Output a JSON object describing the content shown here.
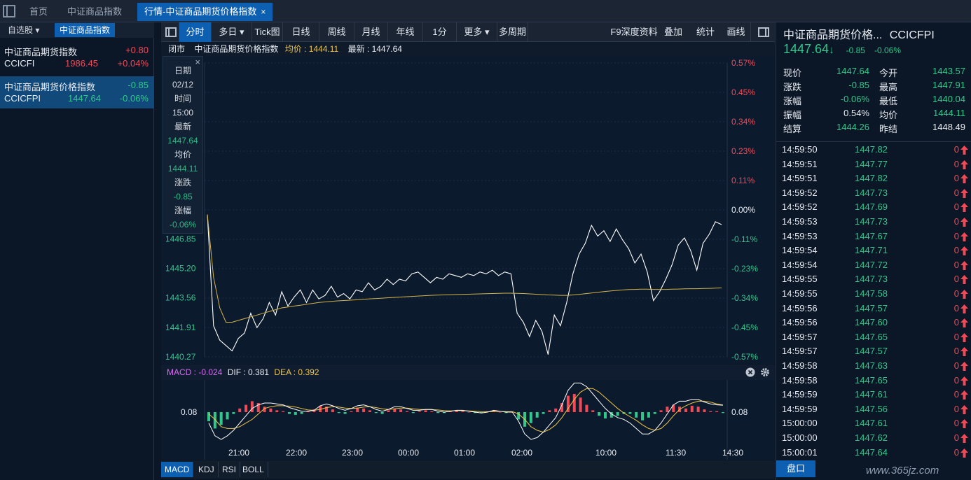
{
  "tabs": [
    {
      "label": "首页",
      "active": false
    },
    {
      "label": "中证商品指数",
      "active": false
    },
    {
      "label": "行情-中证商品期货价格指数",
      "active": true,
      "close": "×"
    }
  ],
  "left": {
    "tabs": [
      {
        "label": "自选股 ▾"
      },
      {
        "label": "中证商品指数"
      }
    ],
    "items": [
      {
        "name": "中证商品期货指数",
        "change": "+0.80",
        "code": "CCICFI",
        "price": "1986.45",
        "pct": "+0.04%"
      },
      {
        "name": "中证商品期货价格指数",
        "change": "-0.85",
        "code": "CCICFPI",
        "price": "1447.64",
        "pct": "-0.06%"
      }
    ]
  },
  "toolbar": {
    "items": [
      "分时",
      "多日 ▾",
      "Tick图",
      "日线",
      "周线",
      "月线",
      "年线",
      "1分",
      "更多 ▾",
      "多周期"
    ],
    "right_items": [
      "F9深度资料",
      "叠加",
      "统计",
      "画线"
    ]
  },
  "infobar": {
    "status": "闭市",
    "name": "中证商品期货价格指数",
    "avg": "均价 : 1444.11",
    "latest": "最新 : 1447.64"
  },
  "popup": {
    "close": "×",
    "rows": [
      {
        "text": "日期",
        "color": "white"
      },
      {
        "text": "02/12",
        "color": "white"
      },
      {
        "text": "时间",
        "color": "white"
      },
      {
        "text": "15:00",
        "color": "white"
      },
      {
        "text": "最新",
        "color": "white"
      },
      {
        "text": "1447.64",
        "color": "green"
      },
      {
        "text": "均价",
        "color": "white"
      },
      {
        "text": "1444.11",
        "color": "green"
      },
      {
        "text": "涨跌",
        "color": "white"
      },
      {
        "text": "-0.85",
        "color": "green"
      },
      {
        "text": "涨幅",
        "color": "white"
      },
      {
        "text": "-0.06%",
        "color": "green"
      }
    ]
  },
  "chart_data": {
    "type": "line",
    "y_left_ticks": [
      "1446.85",
      "1445.20",
      "1443.56",
      "1441.91",
      "1440.27"
    ],
    "y_right_ticks": [
      "0.57%",
      "0.45%",
      "0.34%",
      "0.23%",
      "0.11%",
      "0.00%",
      "-0.11%",
      "-0.23%",
      "-0.34%",
      "-0.45%",
      "-0.57%"
    ],
    "ylim": [
      1440.27,
      1456.65
    ],
    "prev_settle": 1448.49,
    "x_ticks": [
      "21:00",
      "22:00",
      "23:00",
      "00:00",
      "01:00",
      "02:00",
      "10:00",
      "11:30",
      "14:30"
    ],
    "price": [
      1448.2,
      1442.0,
      1441.2,
      1440.9,
      1440.6,
      1441.3,
      1441.6,
      1442.7,
      1441.9,
      1442.4,
      1443.3,
      1442.6,
      1443.9,
      1443.1,
      1443.6,
      1444.0,
      1443.3,
      1444.0,
      1443.5,
      1443.7,
      1444.2,
      1443.6,
      1443.8,
      1443.5,
      1444.0,
      1443.9,
      1444.4,
      1444.0,
      1444.2,
      1444.6,
      1444.3,
      1444.6,
      1444.5,
      1444.9,
      1445.0,
      1444.7,
      1444.4,
      1444.7,
      1444.6,
      1444.9,
      1444.8,
      1444.7,
      1444.9,
      1444.8,
      1445.0,
      1444.9,
      1445.1,
      1444.8,
      1445.0,
      1444.9,
      1442.7,
      1442.2,
      1441.4,
      1442.3,
      1441.7,
      1440.4,
      1442.6,
      1442.0,
      1443.3,
      1444.9,
      1446.0,
      1446.6,
      1447.6,
      1447.0,
      1447.3,
      1446.7,
      1447.4,
      1446.8,
      1446.3,
      1445.5,
      1446.0,
      1445.0,
      1443.4,
      1443.9,
      1444.6,
      1445.4,
      1446.5,
      1446.9,
      1446.2,
      1445.1,
      1446.6,
      1447.1,
      1447.8,
      1447.64
    ],
    "avg": [
      1448.2,
      1444.7,
      1443.0,
      1442.2,
      1442.2,
      1442.3,
      1442.4,
      1442.5,
      1442.6,
      1442.7,
      1442.8,
      1442.9,
      1443.0,
      1443.05,
      1443.1,
      1443.15,
      1443.2,
      1443.25,
      1443.3,
      1443.33,
      1443.36,
      1443.39,
      1443.41,
      1443.43,
      1443.45,
      1443.47,
      1443.5,
      1443.52,
      1443.54,
      1443.56,
      1443.58,
      1443.6,
      1443.62,
      1443.64,
      1443.66,
      1443.68,
      1443.7,
      1443.71,
      1443.72,
      1443.73,
      1443.74,
      1443.75,
      1443.76,
      1443.77,
      1443.78,
      1443.79,
      1443.8,
      1443.81,
      1443.82,
      1443.82,
      1443.81,
      1443.8,
      1443.78,
      1443.76,
      1443.74,
      1443.72,
      1443.71,
      1443.7,
      1443.7,
      1443.72,
      1443.75,
      1443.79,
      1443.83,
      1443.87,
      1443.91,
      1443.94,
      1443.97,
      1444.0,
      1444.02,
      1444.03,
      1444.04,
      1444.04,
      1444.03,
      1444.03,
      1444.03,
      1444.04,
      1444.05,
      1444.06,
      1444.07,
      1444.07,
      1444.08,
      1444.09,
      1444.1,
      1444.11
    ]
  },
  "macd": {
    "label": "MACD : -0.024",
    "dif": "DIF : 0.381",
    "dea": "DEA : 0.392",
    "level": "0.08",
    "hist": [
      -0.5,
      -0.9,
      -0.7,
      -0.4,
      -0.1,
      0.2,
      0.4,
      0.6,
      0.5,
      0.3,
      0.2,
      0.1,
      0.05,
      -0.1,
      -0.15,
      -0.1,
      0.05,
      0.15,
      0.35,
      0.3,
      0.15,
      -0.05,
      -0.1,
      0.05,
      0.25,
      0.2,
      0.1,
      -0.05,
      -0.1,
      0.1,
      0.2,
      0.15,
      0.05,
      -0.05,
      0.05,
      0.1,
      0.05,
      -0.05,
      -0.05,
      0.05,
      0.1,
      0.05,
      0.0,
      -0.05,
      -0.05,
      0.05,
      0.1,
      0.0,
      -0.05,
      0.0,
      -0.4,
      -0.8,
      -0.6,
      -0.3,
      -0.1,
      0.1,
      0.2,
      0.5,
      0.9,
      1.0,
      0.8,
      0.4,
      0.1,
      -0.2,
      -0.35,
      -0.3,
      -0.2,
      -0.1,
      -0.1,
      -0.3,
      -0.45,
      -0.3,
      -0.1,
      0.1,
      0.3,
      0.4,
      0.3,
      0.2,
      0.35,
      0.3,
      0.15,
      0.05,
      0.05,
      -0.05
    ],
    "dif_line": [
      -0.6,
      -1.3,
      -1.5,
      -1.3,
      -1.0,
      -0.6,
      -0.2,
      0.2,
      0.4,
      0.5,
      0.5,
      0.45,
      0.4,
      0.25,
      0.15,
      0.05,
      0.05,
      0.1,
      0.35,
      0.45,
      0.35,
      0.2,
      0.1,
      0.2,
      0.35,
      0.4,
      0.3,
      0.15,
      0.05,
      0.15,
      0.3,
      0.3,
      0.2,
      0.1,
      0.1,
      0.15,
      0.15,
      0.05,
      0.0,
      0.05,
      0.1,
      0.1,
      0.05,
      0.0,
      -0.05,
      0.0,
      0.1,
      0.05,
      0.0,
      0.0,
      -0.5,
      -1.2,
      -1.5,
      -1.4,
      -1.1,
      -0.7,
      -0.3,
      0.4,
      1.2,
      1.6,
      1.6,
      1.4,
      1.0,
      0.6,
      0.2,
      -0.1,
      -0.3,
      -0.4,
      -0.6,
      -0.9,
      -1.2,
      -1.2,
      -1.0,
      -0.6,
      -0.1,
      0.4,
      0.6,
      0.6,
      0.7,
      0.7,
      0.55,
      0.45,
      0.4,
      0.38
    ],
    "dea_line": [
      -0.1,
      -0.4,
      -0.8,
      -0.9,
      -0.9,
      -0.8,
      -0.6,
      -0.4,
      -0.1,
      0.2,
      0.3,
      0.35,
      0.35,
      0.33,
      0.28,
      0.2,
      0.12,
      0.1,
      0.15,
      0.25,
      0.3,
      0.28,
      0.22,
      0.2,
      0.22,
      0.28,
      0.3,
      0.25,
      0.18,
      0.15,
      0.18,
      0.22,
      0.22,
      0.18,
      0.15,
      0.14,
      0.14,
      0.12,
      0.08,
      0.07,
      0.08,
      0.08,
      0.07,
      0.05,
      0.03,
      0.02,
      0.04,
      0.04,
      0.03,
      0.03,
      -0.1,
      -0.4,
      -0.8,
      -1.0,
      -1.1,
      -0.95,
      -0.7,
      -0.3,
      0.2,
      0.7,
      1.1,
      1.3,
      1.3,
      1.1,
      0.8,
      0.5,
      0.2,
      -0.05,
      -0.25,
      -0.45,
      -0.7,
      -0.9,
      -1.0,
      -0.9,
      -0.6,
      -0.2,
      0.15,
      0.35,
      0.5,
      0.6,
      0.6,
      0.55,
      0.45,
      0.39
    ]
  },
  "bottom_tabs": [
    "MACD",
    "KDJ",
    "RSI",
    "BOLL"
  ],
  "right": {
    "title": "中证商品期货价格...",
    "code": "CCICFPI",
    "price": "1447.64",
    "arrow": "↓",
    "change": "-0.85",
    "pct": "-0.06%",
    "stats": [
      {
        "k1": "现价",
        "v1": "1447.64",
        "c1": "green",
        "k2": "今开",
        "v2": "1443.57",
        "c2": "green"
      },
      {
        "k1": "涨跌",
        "v1": "-0.85",
        "c1": "green",
        "k2": "最高",
        "v2": "1447.91",
        "c2": "green"
      },
      {
        "k1": "涨幅",
        "v1": "-0.06%",
        "c1": "green",
        "k2": "最低",
        "v2": "1440.04",
        "c2": "green"
      },
      {
        "k1": "振幅",
        "v1": "0.54%",
        "c1": "white",
        "k2": "均价",
        "v2": "1444.11",
        "c2": "green"
      },
      {
        "k1": "结算",
        "v1": "1444.26",
        "c1": "green",
        "k2": "昨结",
        "v2": "1448.49",
        "c2": "white"
      }
    ],
    "ticks": [
      {
        "t": "14:59:50",
        "p": "1447.82",
        "v": "0"
      },
      {
        "t": "14:59:51",
        "p": "1447.77",
        "v": "0"
      },
      {
        "t": "14:59:51",
        "p": "1447.82",
        "v": "0"
      },
      {
        "t": "14:59:52",
        "p": "1447.73",
        "v": "0"
      },
      {
        "t": "14:59:52",
        "p": "1447.69",
        "v": "0"
      },
      {
        "t": "14:59:53",
        "p": "1447.73",
        "v": "0"
      },
      {
        "t": "14:59:53",
        "p": "1447.67",
        "v": "0"
      },
      {
        "t": "14:59:54",
        "p": "1447.71",
        "v": "0"
      },
      {
        "t": "14:59:54",
        "p": "1447.72",
        "v": "0"
      },
      {
        "t": "14:59:55",
        "p": "1447.73",
        "v": "0"
      },
      {
        "t": "14:59:55",
        "p": "1447.58",
        "v": "0"
      },
      {
        "t": "14:59:56",
        "p": "1447.57",
        "v": "0"
      },
      {
        "t": "14:59:56",
        "p": "1447.60",
        "v": "0"
      },
      {
        "t": "14:59:57",
        "p": "1447.65",
        "v": "0"
      },
      {
        "t": "14:59:57",
        "p": "1447.57",
        "v": "0"
      },
      {
        "t": "14:59:58",
        "p": "1447.63",
        "v": "0"
      },
      {
        "t": "14:59:58",
        "p": "1447.65",
        "v": "0"
      },
      {
        "t": "14:59:59",
        "p": "1447.61",
        "v": "0"
      },
      {
        "t": "14:59:59",
        "p": "1447.56",
        "v": "0"
      },
      {
        "t": "15:00:00",
        "p": "1447.61",
        "v": "0"
      },
      {
        "t": "15:00:00",
        "p": "1447.62",
        "v": "0"
      },
      {
        "t": "15:00:01",
        "p": "1447.64",
        "v": "0"
      }
    ],
    "pankou": "盘口"
  },
  "watermark": "www.365jz.com",
  "colors": {
    "up": "#f24957",
    "down": "#2fc88a",
    "accent": "#0d5fb1",
    "avg_line": "#d4b44a"
  }
}
